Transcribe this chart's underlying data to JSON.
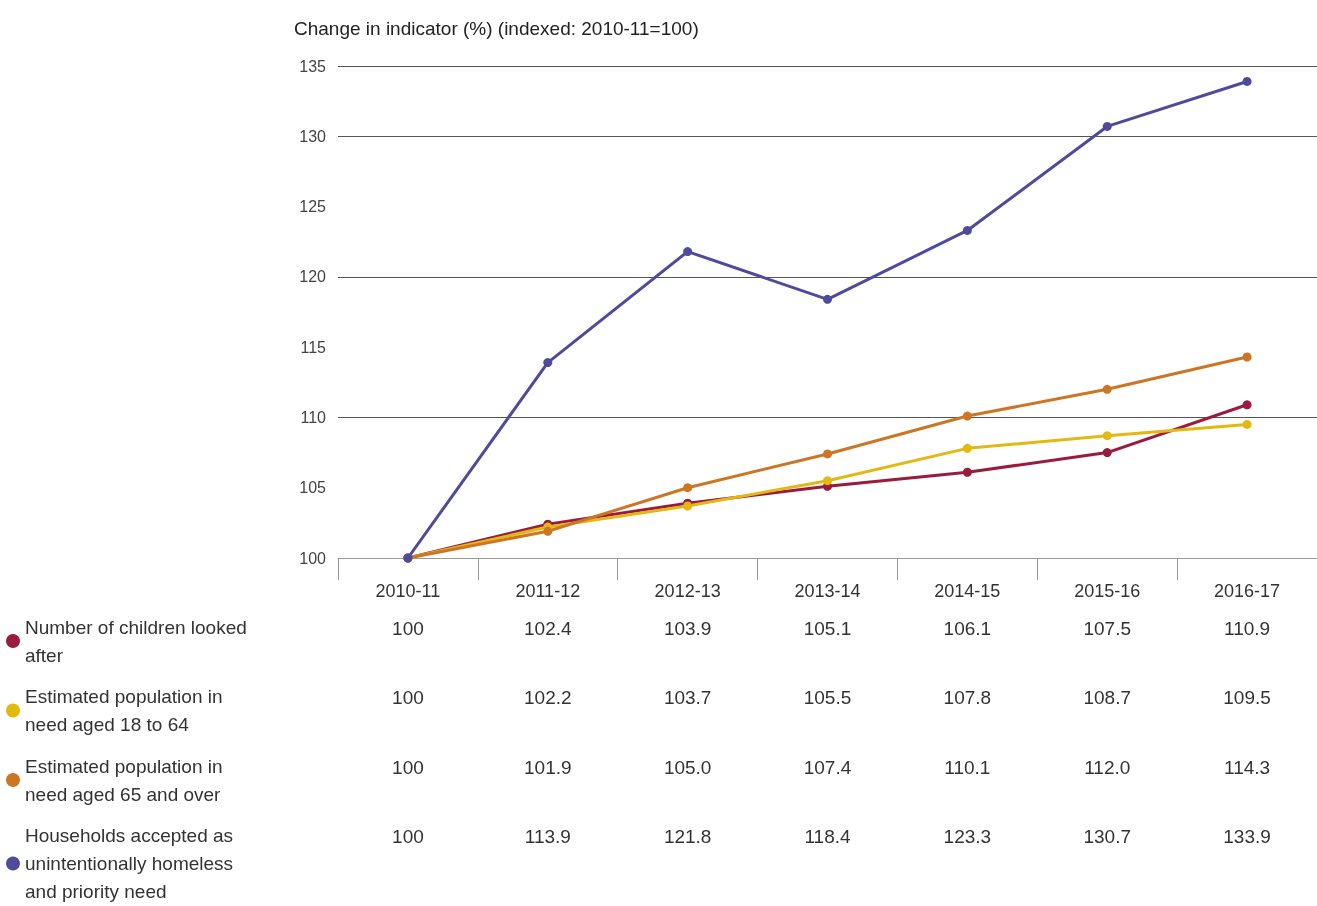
{
  "chart_data": {
    "type": "line",
    "ylabel": "Change in indicator (%) (indexed: 2010-11=100)",
    "categories": [
      "2010-11",
      "2011-12",
      "2012-13",
      "2013-14",
      "2014-15",
      "2015-16",
      "2016-17"
    ],
    "ylim": [
      100,
      135
    ],
    "yticks": [
      100,
      105,
      110,
      115,
      120,
      125,
      130,
      135
    ],
    "grid": "y",
    "legend": "bottom left",
    "marker": "circle",
    "line_style": "solid",
    "series": [
      {
        "name": "Number of children looked after",
        "color": "#9b1b3f",
        "values": [
          100,
          102.4,
          103.9,
          105.1,
          106.1,
          107.5,
          110.9
        ],
        "value_labels": [
          "100",
          "102.4",
          "103.9",
          "105.1",
          "106.1",
          "107.5",
          "110.9"
        ]
      },
      {
        "name": "Estimated population in need aged 18 to 64",
        "color": "#e2b913",
        "values": [
          100,
          102.2,
          103.7,
          105.5,
          107.8,
          108.7,
          109.5
        ],
        "value_labels": [
          "100",
          "102.2",
          "103.7",
          "105.5",
          "107.8",
          "108.7",
          "109.5"
        ]
      },
      {
        "name": "Estimated population in need aged 65 and over",
        "color": "#cc7625",
        "values": [
          100,
          101.9,
          105.0,
          107.4,
          110.1,
          112.0,
          114.3
        ],
        "value_labels": [
          "100",
          "101.9",
          "105.0",
          "107.4",
          "110.1",
          "112.0",
          "114.3"
        ]
      },
      {
        "name": "Households accepted as unintentionally homeless and priority need",
        "color": "#4f4b9b",
        "values": [
          100,
          113.9,
          121.8,
          118.4,
          123.3,
          130.7,
          133.9
        ],
        "value_labels": [
          "100",
          "113.9",
          "121.8",
          "118.4",
          "123.3",
          "130.7",
          "133.9"
        ]
      }
    ]
  }
}
